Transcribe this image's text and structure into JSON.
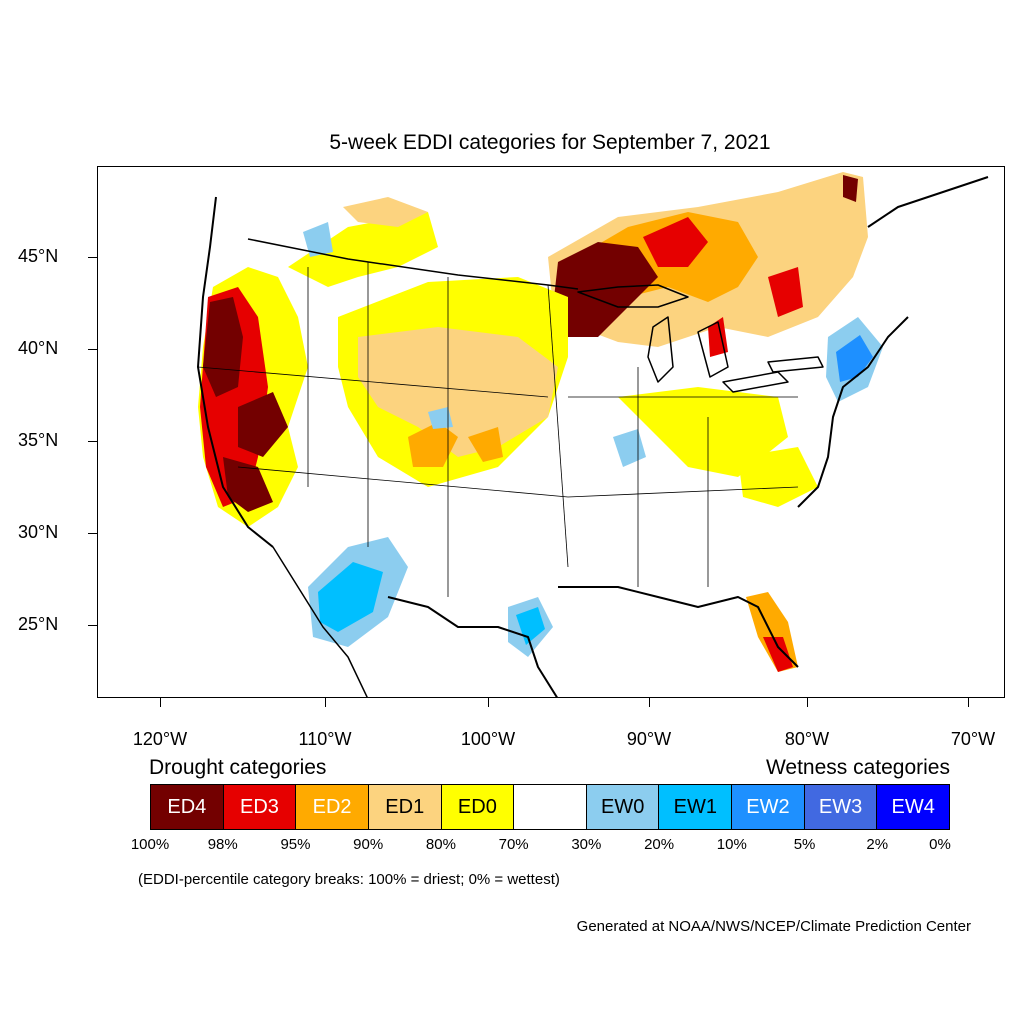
{
  "title": "5-week EDDI categories for September 7, 2021",
  "map": {
    "lat_labels": [
      "45°N",
      "40°N",
      "35°N",
      "30°N",
      "25°N"
    ],
    "lon_labels": [
      "120°W",
      "110°W",
      "100°W",
      "90°W",
      "80°W",
      "70°W"
    ]
  },
  "legend": {
    "drought_heading": "Drought categories",
    "wetness_heading": "Wetness categories",
    "categories": [
      {
        "label": "ED4",
        "color": "#730000",
        "text_color": "#ffffff"
      },
      {
        "label": "ED3",
        "color": "#e60000",
        "text_color": "#ffffff"
      },
      {
        "label": "ED2",
        "color": "#ffaa00",
        "text_color": "#ffffff"
      },
      {
        "label": "ED1",
        "color": "#fcd37f",
        "text_color": "#000000"
      },
      {
        "label": "ED0",
        "color": "#ffff00",
        "text_color": "#000000"
      },
      {
        "label": "",
        "color": "#ffffff",
        "text_color": "#000000"
      },
      {
        "label": "EW0",
        "color": "#8ccdef",
        "text_color": "#000000"
      },
      {
        "label": "EW1",
        "color": "#00bfff",
        "text_color": "#000000"
      },
      {
        "label": "EW2",
        "color": "#1e90ff",
        "text_color": "#ffffff"
      },
      {
        "label": "EW3",
        "color": "#4169e1",
        "text_color": "#ffffff"
      },
      {
        "label": "EW4",
        "color": "#0000ff",
        "text_color": "#ffffff"
      }
    ],
    "breaks": [
      "100%",
      "98%",
      "95%",
      "90%",
      "80%",
      "70%",
      "30%",
      "20%",
      "10%",
      "5%",
      "2%",
      "0%"
    ],
    "note": "(EDDI-percentile category breaks: 100% = driest; 0% = wettest)"
  },
  "credit": "Generated at NOAA/NWS/NCEP/Climate Prediction Center"
}
